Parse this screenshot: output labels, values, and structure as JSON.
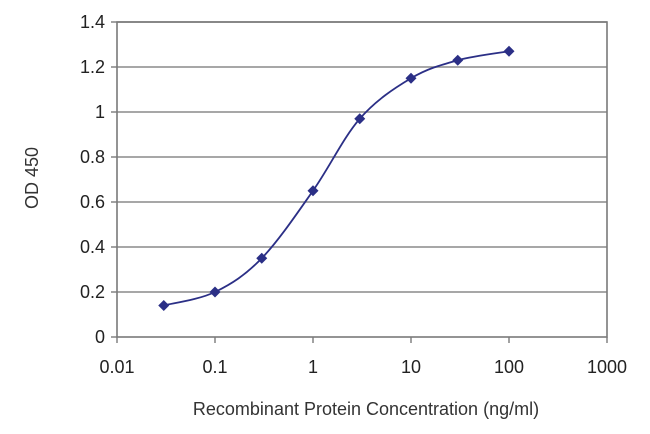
{
  "chart_data": {
    "type": "line",
    "title": "",
    "xlabel": "Recombinant Protein Concentration (ng/ml)",
    "ylabel": "OD 450",
    "x_scale": "log",
    "xlim": [
      0.01,
      1000
    ],
    "ylim": [
      0,
      1.4
    ],
    "x_ticks": [
      0.01,
      0.1,
      1,
      10,
      100,
      1000
    ],
    "x_tick_labels": [
      "0.01",
      "0.1",
      "1",
      "10",
      "100",
      "1000"
    ],
    "y_ticks": [
      0,
      0.2,
      0.4,
      0.6,
      0.8,
      1,
      1.2,
      1.4
    ],
    "y_tick_labels": [
      "0",
      "0.2",
      "0.4",
      "0.6",
      "0.8",
      "1",
      "1.2",
      "1.4"
    ],
    "grid": "horizontal",
    "legend": "none",
    "series": [
      {
        "x": [
          0.03,
          0.1,
          0.3,
          1,
          3,
          10,
          30,
          100
        ],
        "y": [
          0.14,
          0.2,
          0.35,
          0.65,
          0.97,
          1.15,
          1.23,
          1.27
        ]
      }
    ],
    "colors": {
      "series": "#2b2f86",
      "grid": "#8a8a8a",
      "frame": "#7a7a7a"
    }
  }
}
